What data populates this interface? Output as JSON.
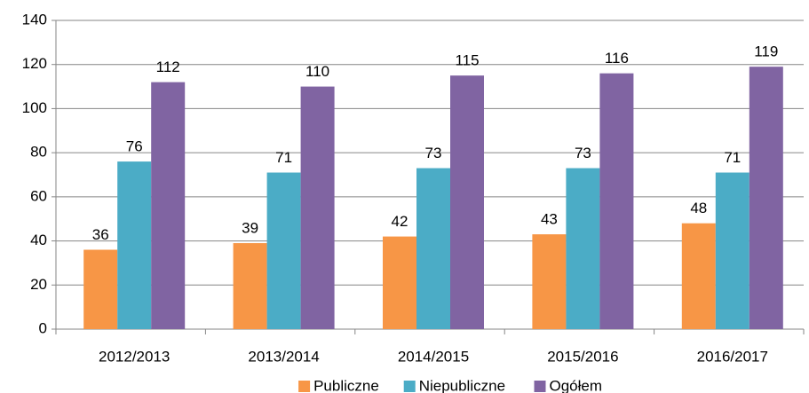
{
  "chart_data": {
    "type": "bar",
    "categories": [
      "2012/2013",
      "2013/2014",
      "2014/2015",
      "2015/2016",
      "2016/2017"
    ],
    "series": [
      {
        "name": "Publiczne",
        "color": "#f79646",
        "values": [
          36,
          39,
          42,
          43,
          48
        ]
      },
      {
        "name": "Niepubliczne",
        "color": "#4bacc6",
        "values": [
          76,
          71,
          73,
          73,
          71
        ]
      },
      {
        "name": "Ogółem",
        "color": "#8064a2",
        "values": [
          112,
          110,
          115,
          116,
          119
        ]
      }
    ],
    "ylim": [
      0,
      140
    ],
    "yticks": [
      0,
      20,
      40,
      60,
      80,
      100,
      120,
      140
    ],
    "grid": true,
    "legend": "bottom"
  }
}
